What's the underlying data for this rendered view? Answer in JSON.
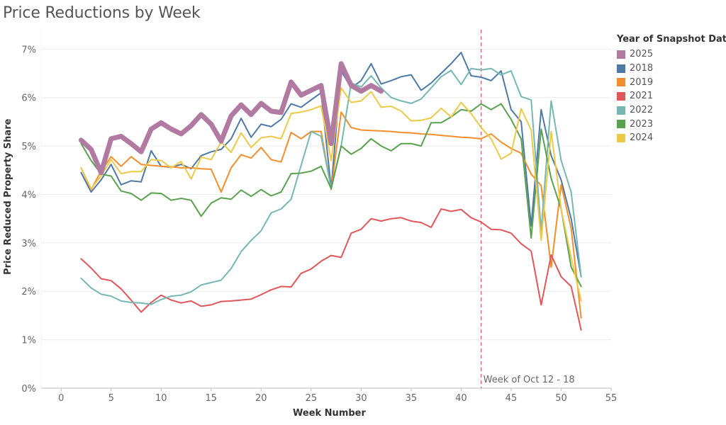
{
  "chart_data": {
    "type": "line",
    "title": "Price Reductions by Week",
    "xlabel": "Week Number",
    "ylabel": "Price Reduced Property Share",
    "xlim": [
      -2,
      55
    ],
    "ylim": [
      0,
      7.4
    ],
    "xticks": [
      0,
      5,
      10,
      15,
      20,
      25,
      30,
      35,
      40,
      45,
      50,
      55
    ],
    "yticks": [
      0,
      1,
      2,
      3,
      4,
      5,
      6,
      7
    ],
    "ytick_labels": [
      "0%",
      "1%",
      "2%",
      "3%",
      "4%",
      "5%",
      "6%",
      "7%"
    ],
    "grid": "horizontal",
    "legend": {
      "title": "Year of Snapshot Date",
      "placement": "right",
      "items": [
        "2025",
        "2018",
        "2019",
        "2021",
        "2022",
        "2023",
        "2024"
      ]
    },
    "annotation": {
      "x": 42,
      "label": "Week of Oct 12 - 18",
      "color": "#e0656b"
    },
    "series": [
      {
        "name": "2018",
        "color": "#4e79a7",
        "x": [
          2,
          3,
          4,
          5,
          6,
          7,
          8,
          9,
          10,
          11,
          12,
          13,
          14,
          15,
          16,
          17,
          18,
          19,
          20,
          21,
          22,
          23,
          24,
          25,
          26,
          27,
          28,
          29,
          30,
          31,
          32,
          33,
          34,
          35,
          36,
          37,
          38,
          39,
          40,
          41,
          42,
          43,
          44,
          45,
          46,
          47,
          48,
          49,
          50,
          51,
          52
        ],
        "y": [
          4.45,
          4.05,
          4.3,
          4.62,
          4.2,
          4.28,
          4.26,
          4.9,
          4.58,
          4.56,
          4.62,
          4.53,
          4.8,
          4.88,
          4.93,
          5.15,
          5.57,
          5.18,
          5.45,
          5.4,
          5.55,
          5.87,
          5.8,
          5.95,
          6.1,
          4.12,
          6.55,
          6.2,
          6.35,
          6.7,
          6.28,
          6.35,
          6.43,
          6.47,
          6.15,
          6.3,
          6.5,
          6.7,
          6.93,
          6.45,
          6.42,
          6.35,
          6.55,
          5.75,
          5.5,
          3.35,
          5.75,
          4.8,
          4.3,
          3.5,
          2.3
        ]
      },
      {
        "name": "2019",
        "color": "#f28e2b",
        "x": [
          2,
          3,
          4,
          5,
          6,
          7,
          8,
          9,
          10,
          11,
          12,
          13,
          14,
          15,
          16,
          17,
          18,
          19,
          20,
          21,
          22,
          23,
          24,
          25,
          26,
          27,
          28,
          29,
          30,
          31,
          32,
          33,
          34,
          35,
          36,
          37,
          38,
          39,
          40,
          41,
          42,
          43,
          44,
          45,
          46,
          47,
          48,
          49,
          50,
          51,
          52
        ],
        "y": [
          4.55,
          4.1,
          4.48,
          4.78,
          4.58,
          4.78,
          4.62,
          4.6,
          4.58,
          4.57,
          4.55,
          4.55,
          4.53,
          4.52,
          4.05,
          4.55,
          4.82,
          4.75,
          4.97,
          4.72,
          4.67,
          5.28,
          5.15,
          5.3,
          5.3,
          4.1,
          5.7,
          5.38,
          5.33,
          5.32,
          5.31,
          5.3,
          5.28,
          5.27,
          5.25,
          5.24,
          5.22,
          5.2,
          5.18,
          5.17,
          5.15,
          5.25,
          5.08,
          4.95,
          4.85,
          4.42,
          4.18,
          2.5,
          4.2,
          3.3,
          1.45
        ]
      },
      {
        "name": "2021",
        "color": "#e15759",
        "x": [
          2,
          3,
          4,
          5,
          6,
          7,
          8,
          9,
          10,
          11,
          12,
          13,
          14,
          15,
          16,
          17,
          18,
          19,
          20,
          21,
          22,
          23,
          24,
          25,
          26,
          27,
          28,
          29,
          30,
          31,
          32,
          33,
          34,
          35,
          36,
          37,
          38,
          39,
          40,
          41,
          42,
          43,
          44,
          45,
          46,
          47,
          48,
          49,
          50,
          51,
          52
        ],
        "y": [
          2.67,
          2.48,
          2.26,
          2.22,
          2.05,
          1.82,
          1.57,
          1.77,
          1.92,
          1.82,
          1.76,
          1.8,
          1.69,
          1.72,
          1.79,
          1.8,
          1.82,
          1.84,
          1.93,
          2.03,
          2.1,
          2.09,
          2.37,
          2.46,
          2.62,
          2.74,
          2.7,
          3.2,
          3.28,
          3.5,
          3.45,
          3.5,
          3.52,
          3.45,
          3.42,
          3.32,
          3.7,
          3.65,
          3.69,
          3.52,
          3.43,
          3.28,
          3.27,
          3.2,
          2.98,
          2.83,
          1.72,
          2.75,
          2.3,
          2.1,
          1.2
        ]
      },
      {
        "name": "2022",
        "color": "#76b7b2",
        "x": [
          2,
          3,
          4,
          5,
          6,
          7,
          8,
          9,
          10,
          11,
          12,
          13,
          14,
          15,
          16,
          17,
          18,
          19,
          20,
          21,
          22,
          23,
          24,
          25,
          26,
          27,
          28,
          29,
          30,
          31,
          32,
          33,
          34,
          35,
          36,
          37,
          38,
          39,
          40,
          41,
          42,
          43,
          44,
          45,
          46,
          47,
          48,
          49,
          50,
          51,
          52
        ],
        "y": [
          2.27,
          2.07,
          1.94,
          1.9,
          1.8,
          1.77,
          1.76,
          1.73,
          1.83,
          1.9,
          1.92,
          1.99,
          2.13,
          2.18,
          2.23,
          2.47,
          2.82,
          3.05,
          3.25,
          3.62,
          3.7,
          3.9,
          4.6,
          5.3,
          5.2,
          4.12,
          5.0,
          6.3,
          6.22,
          6.45,
          6.2,
          6.0,
          5.93,
          5.88,
          5.97,
          6.2,
          6.43,
          6.56,
          6.27,
          6.6,
          6.57,
          6.6,
          6.47,
          6.55,
          6.02,
          5.95,
          3.25,
          5.93,
          4.7,
          4.05,
          2.3
        ]
      },
      {
        "name": "2023",
        "color": "#59a14f",
        "x": [
          2,
          3,
          4,
          5,
          6,
          7,
          8,
          9,
          10,
          11,
          12,
          13,
          14,
          15,
          16,
          17,
          18,
          19,
          20,
          21,
          22,
          23,
          24,
          25,
          26,
          27,
          28,
          29,
          30,
          31,
          32,
          33,
          34,
          35,
          36,
          37,
          38,
          39,
          40,
          41,
          42,
          43,
          44,
          45,
          46,
          47,
          48,
          49,
          50,
          51,
          52
        ],
        "y": [
          5.05,
          4.7,
          4.42,
          4.38,
          4.07,
          4.02,
          3.88,
          4.03,
          4.02,
          3.88,
          3.92,
          3.88,
          3.55,
          3.82,
          3.93,
          3.9,
          4.09,
          3.96,
          4.1,
          3.97,
          4.05,
          4.43,
          4.44,
          4.48,
          4.58,
          4.12,
          5.0,
          4.83,
          4.95,
          5.15,
          5.0,
          4.9,
          5.05,
          5.05,
          5.0,
          5.48,
          5.48,
          5.6,
          5.75,
          5.72,
          5.87,
          5.75,
          5.87,
          5.55,
          5.15,
          3.1,
          5.35,
          4.33,
          3.7,
          2.5,
          2.1
        ]
      },
      {
        "name": "2024",
        "color": "#edc948",
        "x": [
          2,
          3,
          4,
          5,
          6,
          7,
          8,
          9,
          10,
          11,
          12,
          13,
          14,
          15,
          16,
          17,
          18,
          19,
          20,
          21,
          22,
          23,
          24,
          25,
          26,
          27,
          28,
          29,
          30,
          31,
          32,
          33,
          34,
          35,
          36,
          37,
          38,
          39,
          40,
          41,
          42,
          43,
          44,
          45,
          46,
          47,
          48,
          49,
          50,
          51,
          52
        ],
        "y": [
          4.55,
          4.12,
          4.38,
          4.72,
          4.43,
          4.47,
          4.47,
          4.72,
          4.7,
          4.55,
          4.68,
          4.32,
          4.77,
          4.72,
          5.08,
          4.87,
          5.27,
          4.97,
          5.17,
          5.2,
          5.15,
          5.67,
          5.7,
          5.75,
          5.83,
          4.7,
          6.2,
          5.9,
          5.93,
          6.12,
          5.8,
          5.82,
          5.72,
          5.52,
          5.53,
          5.58,
          5.78,
          5.6,
          5.9,
          5.67,
          5.38,
          5.15,
          4.73,
          4.85,
          5.77,
          5.33,
          3.05,
          5.3,
          3.7,
          2.7,
          1.8
        ]
      },
      {
        "name": "2025",
        "color": "#b07aa1",
        "x": [
          2,
          3,
          4,
          5,
          6,
          7,
          8,
          9,
          10,
          11,
          12,
          13,
          14,
          15,
          16,
          17,
          18,
          19,
          20,
          21,
          22,
          23,
          24,
          25,
          26,
          27,
          28,
          29,
          30,
          31,
          32
        ],
        "y": [
          5.12,
          4.93,
          4.45,
          5.15,
          5.2,
          5.05,
          4.88,
          5.35,
          5.48,
          5.35,
          5.25,
          5.42,
          5.65,
          5.45,
          5.1,
          5.62,
          5.85,
          5.65,
          5.88,
          5.72,
          5.69,
          6.32,
          6.05,
          6.15,
          6.25,
          5.05,
          6.7,
          6.25,
          6.13,
          6.25,
          6.13
        ]
      }
    ]
  }
}
